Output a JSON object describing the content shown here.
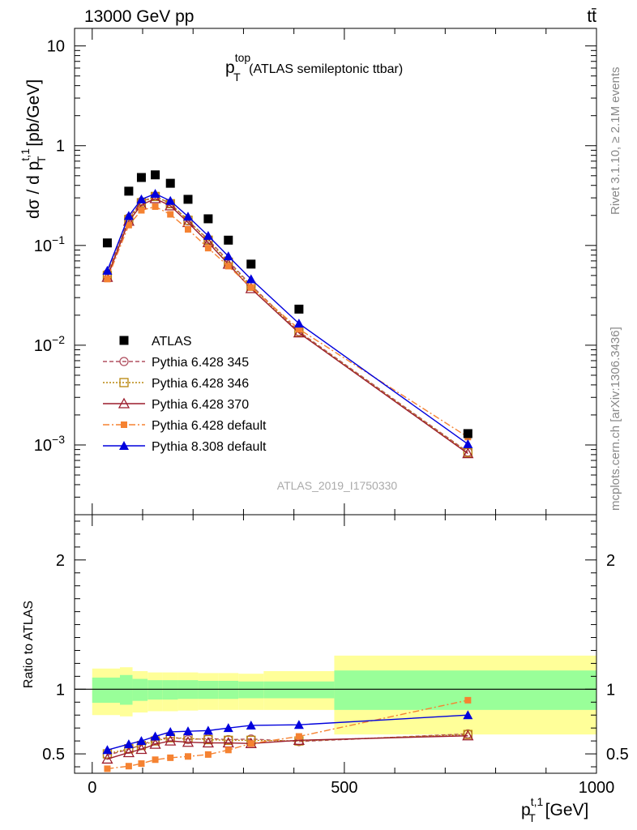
{
  "header": {
    "left": "13000 GeV pp",
    "right": "tt̄"
  },
  "side_labels": {
    "rivet": "Rivet 3.1.10, ≥ 2.1M events",
    "mcplots": "mcplots.cern.ch [arXiv:1306.3436]"
  },
  "watermark": "ATLAS_2019_I1750330",
  "chart_data": [
    {
      "type": "line",
      "title_main": "p",
      "title_sup": "top",
      "title_sub": "T",
      "title_rest": " (ATLAS semileptonic ttbar)",
      "ylabel": "dσ / d p_T^{t,1} [pb/GeV]",
      "ylabel_parts": {
        "pre": "dσ / d p",
        "sup": "t,1",
        "sub": "T",
        "post": " [pb/GeV]"
      },
      "yscale": "log",
      "ylim": [
        0.0002,
        15
      ],
      "yticks": [
        {
          "value": 0.001,
          "base": "10",
          "exp": "−3"
        },
        {
          "value": 0.01,
          "base": "10",
          "exp": "−2"
        },
        {
          "value": 0.1,
          "base": "10",
          "exp": "−1"
        },
        {
          "value": 1,
          "label": "1"
        },
        {
          "value": 10,
          "label": "10"
        }
      ],
      "xlim": [
        -35,
        1000
      ],
      "legend_position": "middle-left",
      "x": [
        30,
        72.5,
        97.5,
        125,
        155,
        190,
        230,
        270,
        315,
        410,
        745
      ],
      "data": {
        "name": "ATLAS",
        "values": [
          0.106,
          0.35,
          0.48,
          0.51,
          0.42,
          0.29,
          0.185,
          0.113,
          0.065,
          0.023,
          0.0013
        ]
      },
      "series": [
        {
          "name": "Pythia 6.428 345",
          "color": "#b05060",
          "marker": "circle-open",
          "dash": "5,3",
          "values": [
            0.052,
            0.188,
            0.275,
            0.312,
            0.264,
            0.177,
            0.115,
            0.07,
            0.04,
            0.0137,
            0.00085
          ]
        },
        {
          "name": "Pythia 6.428 346",
          "color": "#b8860b",
          "marker": "square-open",
          "dash": "2,2",
          "values": [
            0.05,
            0.182,
            0.268,
            0.31,
            0.262,
            0.179,
            0.113,
            0.068,
            0.039,
            0.0135,
            0.00084
          ]
        },
        {
          "name": "Pythia 6.428 370",
          "color": "#9b1c2c",
          "marker": "triangle-open",
          "dash": "",
          "values": [
            0.048,
            0.175,
            0.255,
            0.295,
            0.25,
            0.17,
            0.107,
            0.065,
            0.037,
            0.0133,
            0.00082
          ]
        },
        {
          "name": "Pythia 6.428 default",
          "color": "#f58231",
          "marker": "square-filled",
          "dash": "8,3,2,3",
          "values": [
            0.046,
            0.16,
            0.225,
            0.245,
            0.205,
            0.145,
            0.094,
            0.062,
            0.038,
            0.0145,
            0.0012
          ]
        },
        {
          "name": "Pythia 8.308 default",
          "color": "#0000dd",
          "marker": "triangle-filled",
          "dash": "",
          "values": [
            0.056,
            0.198,
            0.29,
            0.33,
            0.28,
            0.195,
            0.125,
            0.078,
            0.046,
            0.0165,
            0.00102
          ]
        }
      ]
    },
    {
      "type": "line",
      "ylabel": "Ratio to ATLAS",
      "ylim": [
        0.35,
        2.35
      ],
      "yticks": [
        {
          "value": 0.5,
          "label": "0.5"
        },
        {
          "value": 1,
          "label": "1"
        },
        {
          "value": 2,
          "label": "2"
        }
      ],
      "xlim": [
        -35,
        1000
      ],
      "xticks": [
        {
          "value": 0,
          "label": "0"
        },
        {
          "value": 500,
          "label": "500"
        },
        {
          "value": 1000,
          "label": "1000"
        }
      ],
      "xlabel_parts": {
        "pre": "p",
        "sup": "t,1",
        "sub": "T",
        "post": " [GeV]"
      },
      "reference": 1,
      "bins": [
        {
          "lo": 0,
          "hi": 55,
          "band1": [
            0.895,
            1.09
          ],
          "band2": [
            0.8,
            1.16
          ]
        },
        {
          "lo": 55,
          "hi": 80,
          "band1": [
            0.88,
            1.11
          ],
          "band2": [
            0.79,
            1.17
          ]
        },
        {
          "lo": 80,
          "hi": 110,
          "band1": [
            0.91,
            1.08
          ],
          "band2": [
            0.82,
            1.14
          ]
        },
        {
          "lo": 110,
          "hi": 140,
          "band1": [
            0.92,
            1.07
          ],
          "band2": [
            0.83,
            1.13
          ]
        },
        {
          "lo": 140,
          "hi": 170,
          "band1": [
            0.92,
            1.07
          ],
          "band2": [
            0.83,
            1.13
          ]
        },
        {
          "lo": 170,
          "hi": 210,
          "band1": [
            0.925,
            1.07
          ],
          "band2": [
            0.835,
            1.13
          ]
        },
        {
          "lo": 210,
          "hi": 250,
          "band1": [
            0.925,
            1.065
          ],
          "band2": [
            0.84,
            1.125
          ]
        },
        {
          "lo": 250,
          "hi": 290,
          "band1": [
            0.925,
            1.065
          ],
          "band2": [
            0.84,
            1.125
          ]
        },
        {
          "lo": 290,
          "hi": 340,
          "band1": [
            0.93,
            1.06
          ],
          "band2": [
            0.84,
            1.12
          ]
        },
        {
          "lo": 340,
          "hi": 480,
          "band1": [
            0.93,
            1.06
          ],
          "band2": [
            0.84,
            1.14
          ]
        },
        {
          "lo": 480,
          "hi": 1000,
          "band1": [
            0.84,
            1.145
          ],
          "band2": [
            0.65,
            1.26
          ]
        }
      ],
      "series": [
        {
          "name": "Pythia 6.428 345",
          "values": [
            0.49,
            0.535,
            0.57,
            0.61,
            0.63,
            0.61,
            0.62,
            0.61,
            0.615,
            0.595,
            0.655
          ]
        },
        {
          "name": "Pythia 6.428 346",
          "values": [
            0.5,
            0.54,
            0.565,
            0.6,
            0.625,
            0.62,
            0.61,
            0.605,
            0.605,
            0.6,
            0.65
          ]
        },
        {
          "name": "Pythia 6.428 370",
          "values": [
            0.46,
            0.51,
            0.535,
            0.575,
            0.6,
            0.59,
            0.585,
            0.585,
            0.58,
            0.605,
            0.64
          ]
        },
        {
          "name": "Pythia 6.428 default",
          "values": [
            0.385,
            0.405,
            0.425,
            0.455,
            0.47,
            0.48,
            0.495,
            0.53,
            0.58,
            0.635,
            0.915
          ]
        },
        {
          "name": "Pythia 8.308 default",
          "values": [
            0.53,
            0.575,
            0.6,
            0.635,
            0.67,
            0.675,
            0.68,
            0.7,
            0.72,
            0.725,
            0.8
          ]
        }
      ]
    }
  ]
}
